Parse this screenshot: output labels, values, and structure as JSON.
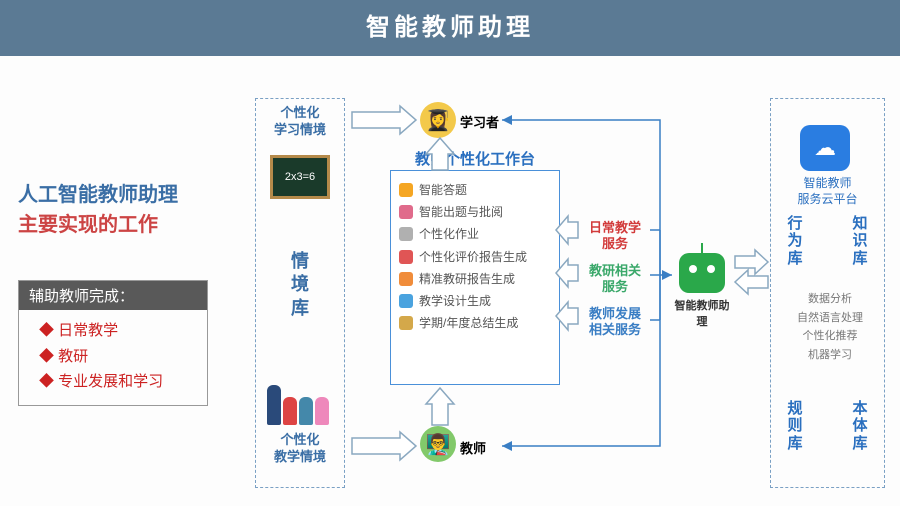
{
  "header": {
    "title": "智能教师助理"
  },
  "left": {
    "line1": "人工智能教师助理",
    "line2": "主要实现的工作",
    "box_head": "辅助教师完成：",
    "items": [
      "日常教学",
      "教研",
      "专业发展和学习"
    ]
  },
  "situation": {
    "top_label": "个性化\n学习情境",
    "chalk_text": "2x3=6",
    "mid_label": "情\n境\n库",
    "bottom_label": "个性化\n教学情境",
    "colors": {
      "chalk_bg": "#1a3a2a",
      "chalk_border": "#b58a4a"
    }
  },
  "learner": {
    "label": "学习者",
    "icon_bg": "#f3c94a"
  },
  "teacher": {
    "label": "教师",
    "icon_bg": "#82c96a"
  },
  "workbench": {
    "title": "教师个性化工作台",
    "items": [
      {
        "label": "智能答题",
        "color": "#f5a623"
      },
      {
        "label": "智能出题与批阅",
        "color": "#e06b8b"
      },
      {
        "label": "个性化作业",
        "color": "#b0b0b0"
      },
      {
        "label": "个性化评价报告生成",
        "color": "#e05555"
      },
      {
        "label": "精准教研报告生成",
        "color": "#f08c3a"
      },
      {
        "label": "教学设计生成",
        "color": "#4aa3df"
      },
      {
        "label": "学期/年度总结生成",
        "color": "#d4a84a"
      }
    ]
  },
  "services": [
    {
      "label": "日常教学\n服务",
      "color": "#d23b3b"
    },
    {
      "label": "教研相关\n服务",
      "color": "#3aa86a"
    },
    {
      "label": "教师发展\n相关服务",
      "color": "#3a7ec4"
    }
  ],
  "robot": {
    "label": "智能教师助理",
    "color": "#2aa84a"
  },
  "cloud": {
    "label": "智能教师\n服务云平台",
    "columns_top": [
      "行\n为\n库",
      "知\n识\n库"
    ],
    "columns_bottom": [
      "规\n则\n库",
      "本\n体\n库"
    ],
    "tech": [
      "数据分析",
      "自然语言处理",
      "个性化推荐",
      "机器学习"
    ]
  },
  "style": {
    "header_bg": "#5b7a94",
    "dashed_border": "#7aa0c4",
    "accent_blue": "#3a6ea5",
    "accent_red": "#c22222"
  }
}
